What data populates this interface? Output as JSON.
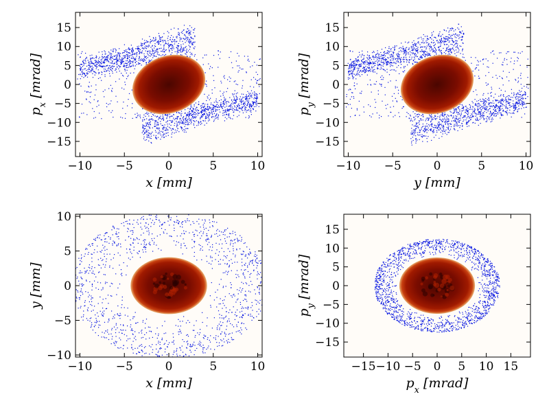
{
  "chart_data": [
    {
      "type": "heatmap",
      "panel": "x-px",
      "xlabel": "x [mm]",
      "ylabel": "p_x [mrad]",
      "xlim": [
        -10.5,
        10.5
      ],
      "ylim": [
        -19,
        19
      ],
      "xticks": [
        -10,
        -5,
        0,
        5,
        10
      ],
      "yticks": [
        -15,
        -10,
        -5,
        0,
        5,
        10,
        15
      ],
      "core": {
        "cx": 0,
        "cy": 0,
        "rx": 4.2,
        "ry": 7.5,
        "tilt_deg": 20
      },
      "halo": {
        "arms": [
          {
            "x": [
              -10,
              3
            ],
            "y": [
              4,
              13
            ]
          },
          {
            "x": [
              -3,
              10
            ],
            "y": [
              -13,
              -4
            ]
          }
        ]
      }
    },
    {
      "type": "heatmap",
      "panel": "y-py",
      "xlabel": "y [mm]",
      "ylabel": "p_y [mrad]",
      "xlim": [
        -10.5,
        10.5
      ],
      "ylim": [
        -19,
        19
      ],
      "xticks": [
        -10,
        -5,
        0,
        5,
        10
      ],
      "yticks": [
        -15,
        -10,
        -5,
        0,
        5,
        10,
        15
      ],
      "core": {
        "cx": 0,
        "cy": 0,
        "rx": 4.2,
        "ry": 7.5,
        "tilt_deg": 20
      },
      "halo": {
        "arms": [
          {
            "x": [
              -10,
              3
            ],
            "y": [
              4,
              13
            ]
          },
          {
            "x": [
              -3,
              10
            ],
            "y": [
              -13,
              -4
            ]
          }
        ]
      }
    },
    {
      "type": "heatmap",
      "panel": "x-y",
      "xlabel": "x [mm]",
      "ylabel": "y [mm]",
      "xlim": [
        -10.5,
        10.5
      ],
      "ylim": [
        -10.3,
        10.3
      ],
      "xticks": [
        -10,
        -5,
        0,
        5,
        10
      ],
      "yticks": [
        -10,
        -5,
        0,
        5,
        10
      ],
      "core": {
        "cx": 0,
        "cy": 0,
        "rx": 4.3,
        "ry": 4.1,
        "tilt_deg": 0
      },
      "halo": {
        "ring": [
          4.5,
          10.5
        ]
      }
    },
    {
      "type": "heatmap",
      "panel": "px-py",
      "xlabel": "p_x [mrad]",
      "ylabel": "p_y [mrad]",
      "xlim": [
        -19,
        19
      ],
      "ylim": [
        -19,
        19
      ],
      "xticks": [
        -15,
        -10,
        -5,
        0,
        5,
        10,
        15
      ],
      "yticks": [
        -15,
        -10,
        -5,
        0,
        5,
        10,
        15
      ],
      "core": {
        "cx": 0,
        "cy": 0,
        "rx": 7.7,
        "ry": 7.5,
        "tilt_deg": 0
      },
      "halo": {
        "ring": [
          8.2,
          12.8
        ]
      }
    }
  ],
  "colors": {
    "core_dark": "#4a0600",
    "core_mid": "#a01a00",
    "core_edge": "#e8b070",
    "halo": "#0010e0",
    "background": "#fffcf8"
  }
}
